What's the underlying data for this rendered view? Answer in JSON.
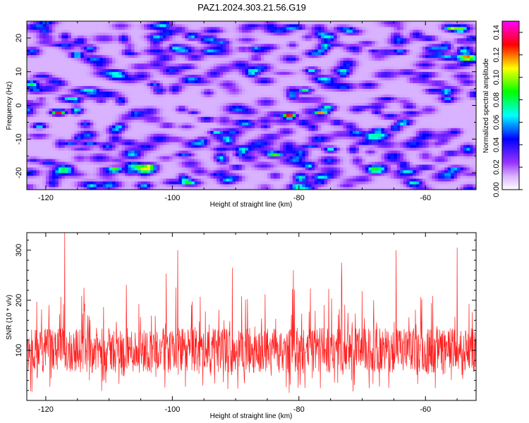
{
  "title": "PAZ1.2024.303.21.56.G19",
  "chart_data": [
    {
      "type": "heatmap",
      "xlabel": "Height of straight line (km)",
      "ylabel": "Frequency (Hz)",
      "xlim": [
        -123,
        -52
      ],
      "ylim": [
        -25,
        25
      ],
      "x_ticks": [
        -120,
        -100,
        -80,
        -60
      ],
      "y_ticks": [
        -20,
        -10,
        0,
        10,
        20
      ],
      "colorbar": {
        "label": "Normalized spectral amplitude",
        "range": [
          0,
          0.15
        ],
        "ticks": [
          "0.00",
          "0.02",
          "0.04",
          "0.06",
          "0.08",
          "0.10",
          "0.12",
          "0.14"
        ],
        "colormap": [
          "#ffffff",
          "#9933ff",
          "#0000ff",
          "#00ffff",
          "#00ff00",
          "#ffff00",
          "#ff0000",
          "#ff00ff"
        ]
      },
      "peaks": [
        {
          "x": -118,
          "y": -2,
          "value": 0.13
        },
        {
          "x": -81.5,
          "y": -3,
          "value": 0.12
        },
        {
          "x": -76.5,
          "y": -2,
          "value": 0.11
        },
        {
          "x": -109,
          "y": -19,
          "value": 0.09
        },
        {
          "x": -79,
          "y": 4.5,
          "value": 0.07
        },
        {
          "x": -115,
          "y": 15,
          "value": 0.07
        },
        {
          "x": -83.5,
          "y": -14.5,
          "value": 0.07
        },
        {
          "x": -93,
          "y": -8,
          "value": 0.06
        },
        {
          "x": -56,
          "y": 23,
          "value": 0.07
        },
        {
          "x": -121,
          "y": -6,
          "value": 0.06
        },
        {
          "x": -75,
          "y": -13,
          "value": 0.06
        },
        {
          "x": -64,
          "y": 16,
          "value": 0.05
        }
      ]
    },
    {
      "type": "line",
      "xlabel": "Height of straight line (km)",
      "ylabel": "SNR (10 * v/v)",
      "xlim": [
        -123,
        -52
      ],
      "ylim": [
        0,
        335
      ],
      "x_ticks": [
        -120,
        -100,
        -80,
        -60
      ],
      "y_ticks": [
        100,
        200,
        300
      ],
      "series": [
        {
          "color": "#ff2020",
          "points_count": 1400,
          "baseline": 100,
          "spread": 45,
          "max": 335
        }
      ]
    }
  ]
}
